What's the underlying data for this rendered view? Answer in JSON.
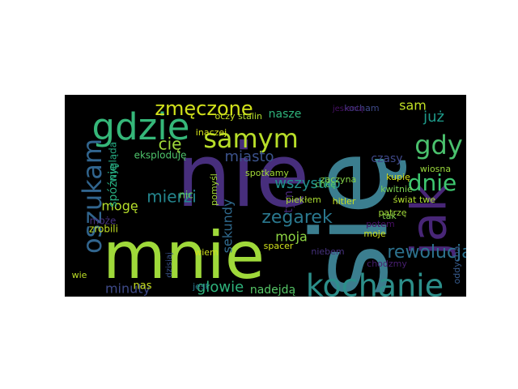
{
  "wordcloud": {
    "words": [
      {
        "text": "się",
        "color": "#3b7e8f"
      },
      {
        "text": "nie",
        "color": "#472e7c"
      },
      {
        "text": "mnie",
        "color": "#9fd93a"
      },
      {
        "text": "jak",
        "color": "#482677"
      },
      {
        "text": "gdzie",
        "color": "#35b779"
      },
      {
        "text": "kochanie",
        "color": "#2c8f8a"
      },
      {
        "text": "samym",
        "color": "#b8de29"
      },
      {
        "text": "oszukam",
        "color": "#31658e"
      },
      {
        "text": "gdy",
        "color": "#4ac16d"
      },
      {
        "text": "dnie",
        "color": "#3ec770"
      },
      {
        "text": "zmęczone",
        "color": "#d2e21b"
      },
      {
        "text": "zegarek",
        "color": "#2a788e"
      },
      {
        "text": "rewolucja",
        "color": "#2c728e"
      },
      {
        "text": "mierzi",
        "color": "#24868e"
      },
      {
        "text": "cię",
        "color": "#a0da39"
      },
      {
        "text": "głowie",
        "color": "#2eb37c"
      },
      {
        "text": "wszystko",
        "color": "#21918c"
      },
      {
        "text": "miasto",
        "color": "#3b528b"
      },
      {
        "text": "sekundy",
        "color": "#306a8e"
      },
      {
        "text": "minuty",
        "color": "#3e4a89"
      },
      {
        "text": "nadejdą",
        "color": "#56c667"
      },
      {
        "text": "mogę",
        "color": "#b5de2b"
      },
      {
        "text": "spóźnię",
        "color": "#28ae80"
      },
      {
        "text": "moja",
        "color": "#8fd744"
      },
      {
        "text": "już",
        "color": "#1e9b8a"
      },
      {
        "text": "sam",
        "color": "#c0df25"
      },
      {
        "text": "czasy",
        "color": "#3f4889"
      },
      {
        "text": "tym",
        "color": "#482878"
      },
      {
        "text": "nasze",
        "color": "#2fb47c"
      },
      {
        "text": "kocham",
        "color": "#3e4989"
      },
      {
        "text": "potem",
        "color": "#471063"
      },
      {
        "text": "spotkamy",
        "color": "#a2da37"
      },
      {
        "text": "zaczyna",
        "color": "#86d549"
      },
      {
        "text": "hitler",
        "color": "#cae11f"
      },
      {
        "text": "piekłem",
        "color": "#aadc32"
      },
      {
        "text": "świat",
        "color": "#b0dd2f"
      },
      {
        "text": "twe",
        "color": "#a8db34"
      },
      {
        "text": "kupię",
        "color": "#d8e219"
      },
      {
        "text": "kwitnie",
        "color": "#7ad151"
      },
      {
        "text": "wiosna",
        "color": "#9bd93c"
      },
      {
        "text": "chodzmy",
        "color": "#481f70"
      },
      {
        "text": "nas",
        "color": "#c8e020"
      },
      {
        "text": "jest",
        "color": "#2a768e"
      },
      {
        "text": "wiem",
        "color": "#d0e11c"
      },
      {
        "text": "dzisiaj",
        "color": "#3a548c"
      },
      {
        "text": "zrobili",
        "color": "#c2df23"
      },
      {
        "text": "może",
        "color": "#46317e"
      },
      {
        "text": "nic",
        "color": "#6ccd5a"
      },
      {
        "text": "pomyśl",
        "color": "#a5db36"
      },
      {
        "text": "inaczej",
        "color": "#d5e21a"
      },
      {
        "text": "stalin",
        "color": "#b2dd2d"
      },
      {
        "text": "oczy",
        "color": "#c5e021"
      },
      {
        "text": "eksploduję",
        "color": "#4ec36b"
      },
      {
        "text": "wygląda",
        "color": "#25ab82"
      },
      {
        "text": "spacer",
        "color": "#d2e21b"
      },
      {
        "text": "chcę",
        "color": "#5ac864"
      },
      {
        "text": "tak",
        "color": "#83d34b"
      },
      {
        "text": "patrzę",
        "color": "#a0da39"
      },
      {
        "text": "moje",
        "color": "#cde11d"
      },
      {
        "text": "niebem",
        "color": "#46327e"
      },
      {
        "text": "wie",
        "color": "#bddf26"
      },
      {
        "text": "oddycha",
        "color": "#375b8d"
      },
      {
        "text": "jesienią",
        "color": "#471164"
      }
    ]
  }
}
